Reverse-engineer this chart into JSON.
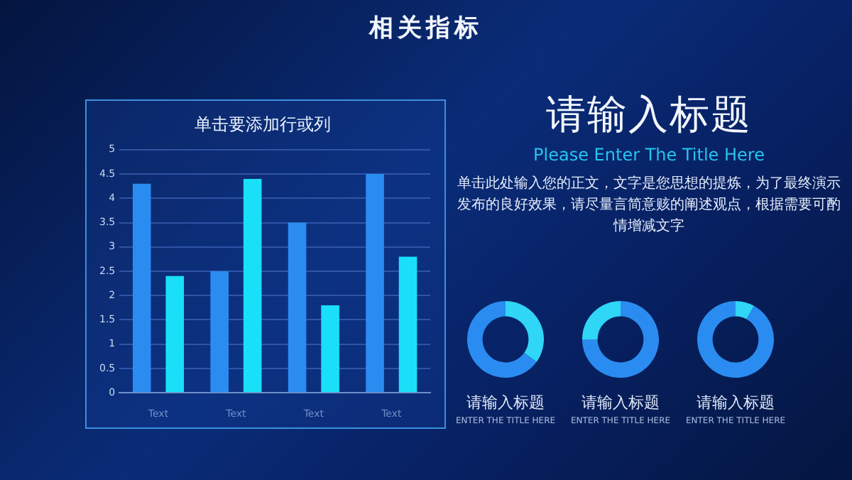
{
  "chart_data": [
    {
      "type": "other",
      "title": "相关指标"
    },
    {
      "type": "bar",
      "title": "单击要添加行或列",
      "categories": [
        "Text",
        "Text",
        "Text",
        "Text"
      ],
      "series": [
        {
          "color": "#2a8cf0",
          "values": [
            4.3,
            2.5,
            3.5,
            4.5
          ]
        },
        {
          "color": "#19e0f8",
          "values": [
            2.4,
            4.4,
            1.8,
            2.8
          ]
        }
      ],
      "ylim": [
        0,
        5
      ],
      "yticks": [
        0,
        0.5,
        1,
        1.5,
        2,
        2.5,
        3,
        3.5,
        4,
        4.5,
        5
      ],
      "grid": "y"
    },
    {
      "type": "other",
      "title": "请输入标题",
      "subtitle": "Please Enter The Title Here",
      "annotations": [
        "单击此处输入您的正文，文字是您思想的提炼，为了最终演示发布的良好效果，请尽量言简意赅的阐述观点，根据需要可酌情增减文字"
      ]
    },
    {
      "type": "donut",
      "title": "请输入标题",
      "subtitle": "ENTER THE TITLE HERE",
      "categories": [
        null,
        null
      ],
      "values": [
        35,
        65
      ],
      "colors": [
        "#2fd6f6",
        "#2a8cf0"
      ]
    },
    {
      "type": "donut",
      "title": "请输入标题",
      "subtitle": "ENTER THE TITLE HERE",
      "categories": [
        null,
        null
      ],
      "values": [
        75,
        25
      ],
      "colors": [
        "#2a8cf0",
        "#2fd6f6"
      ]
    },
    {
      "type": "donut",
      "title": "请输入标题",
      "subtitle": "ENTER THE TITLE HERE",
      "categories": [
        null,
        null
      ],
      "values": [
        8,
        92
      ],
      "colors": [
        "#2fd6f6",
        "#2a8cf0"
      ]
    }
  ]
}
